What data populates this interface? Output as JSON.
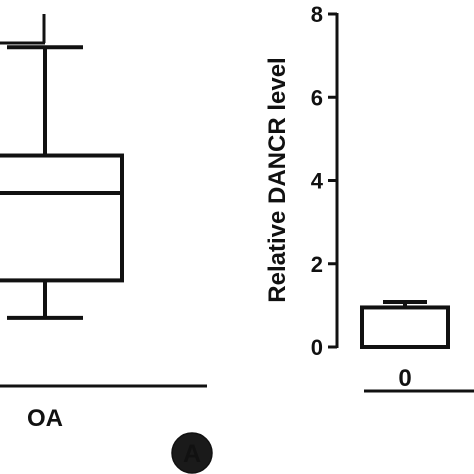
{
  "chart_data": [
    {
      "type": "box",
      "categories": [
        "OA"
      ],
      "boxes": [
        {
          "category": "OA",
          "whisker_high": 7.2,
          "q3": 4.6,
          "median": 3.7,
          "q1": 1.6,
          "whisker_low": 0.7
        }
      ],
      "significance_bracket": true,
      "xlabel": "",
      "ylabel": ""
    },
    {
      "type": "bar",
      "categories": [
        "0"
      ],
      "values": [
        0.95
      ],
      "errors": [
        0.13
      ],
      "ylabel": "Relative DANCR level",
      "ylim": [
        0,
        8
      ],
      "yticks": [
        0,
        2,
        4,
        6,
        8
      ],
      "xlabel": ""
    }
  ],
  "panel_label": "A",
  "colors": {
    "ink": "#111111",
    "badge": "#1a1a1a",
    "badge_text": "#ffffff"
  }
}
